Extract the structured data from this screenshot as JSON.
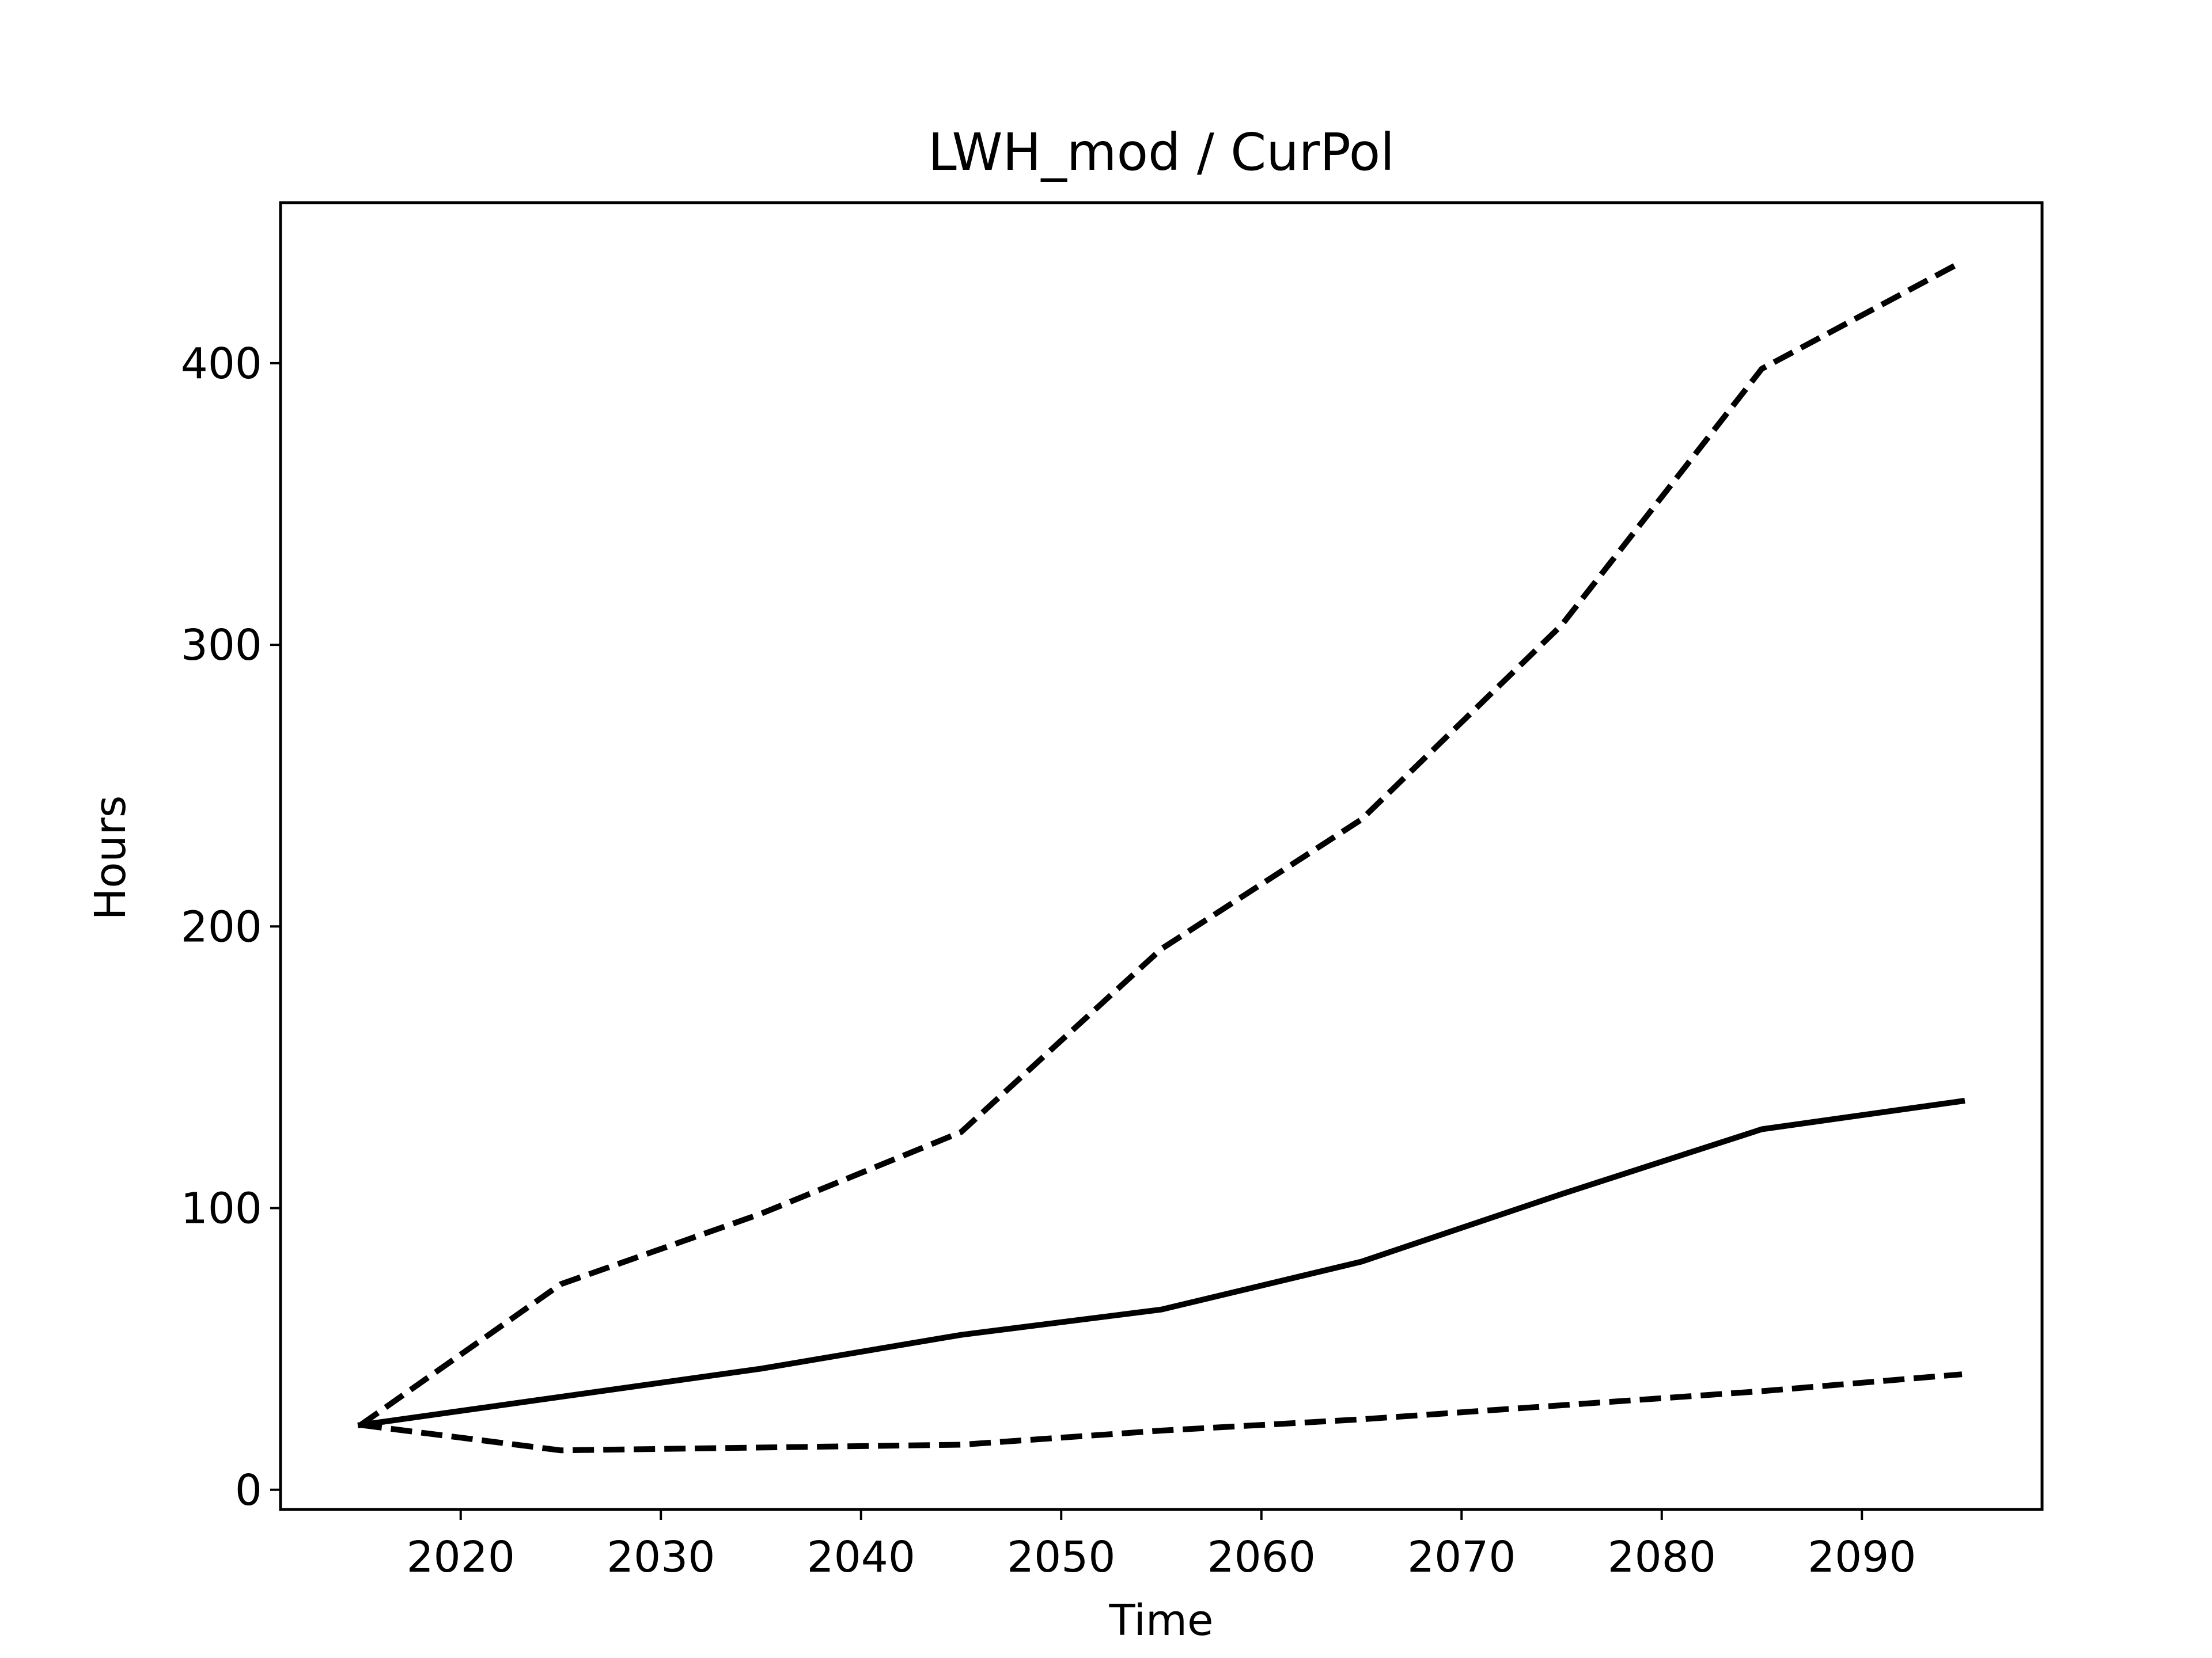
{
  "chart_data": {
    "type": "line",
    "title": "LWH_mod / CurPol",
    "xlabel": "Time",
    "ylabel": "Hours",
    "xlim": [
      2011,
      2099
    ],
    "ylim": [
      -7,
      457
    ],
    "xticks": [
      2020,
      2030,
      2040,
      2050,
      2060,
      2070,
      2080,
      2090
    ],
    "yticks": [
      0,
      100,
      200,
      300,
      400
    ],
    "grid": false,
    "legend": "none",
    "x": [
      2015,
      2025,
      2035,
      2045,
      2055,
      2065,
      2075,
      2085,
      2095
    ],
    "series": [
      {
        "style": "dashed",
        "color": "#000000",
        "values": [
          23,
          73,
          98,
          127,
          192,
          238,
          307,
          398,
          436
        ]
      },
      {
        "style": "solid",
        "color": "#000000",
        "values": [
          23,
          33,
          43,
          55,
          64,
          81,
          105,
          128,
          138
        ]
      },
      {
        "style": "dashed",
        "color": "#000000",
        "values": [
          23,
          14,
          15,
          16,
          21,
          25,
          30,
          35,
          41
        ]
      }
    ]
  }
}
